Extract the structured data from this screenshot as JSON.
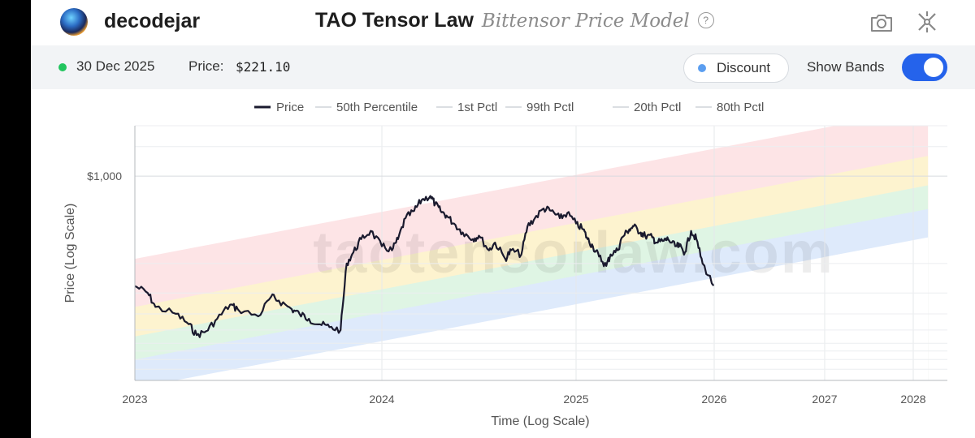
{
  "header": {
    "username": "decodejar",
    "title": "TAO Tensor Law",
    "subtitle": "Bittensor Price Model",
    "help_icon": "help-icon",
    "camera_icon": "camera-icon",
    "tools_icon": "tools-icon"
  },
  "toolbar": {
    "date": "30 Dec 2025",
    "price_label": "Price:",
    "price_value": "$221.10",
    "discount_label": "Discount",
    "bands_label": "Show Bands",
    "bands_on": true,
    "colors": {
      "status_dot": "#22c55e",
      "discount_dot": "#5b9ef0",
      "toggle": "#2563eb"
    }
  },
  "chart_data": {
    "type": "line",
    "xlabel": "Time (Log Scale)",
    "ylabel": "Price (Log Scale)",
    "watermark": "taotensorlaw.com",
    "x_ticks": [
      "2023",
      "2024",
      "2025",
      "2026",
      "2027",
      "2028"
    ],
    "y_ticks": [
      "$1,000"
    ],
    "xlim": [
      "2023-01",
      "2028-03"
    ],
    "ylim": [
      60,
      2000
    ],
    "y_scale": "log",
    "grid": true,
    "legend_position": "top",
    "legend": [
      "Price",
      "50th Percentile",
      "1st Pctl",
      "99th Pctl",
      "20th Pctl",
      "80th Pctl"
    ],
    "bands": [
      {
        "name": "99th Pctl",
        "start": 320,
        "end": 2550,
        "color": "#fde4e6"
      },
      {
        "name": "80th Pctl",
        "start": 165,
        "end": 1320,
        "color": "#fdf3cf"
      },
      {
        "name": "50th Percentile",
        "start": 110,
        "end": 880,
        "color": "#dff5e4"
      },
      {
        "name": "20th Pctl",
        "start": 80,
        "end": 635,
        "color": "#deeafb"
      },
      {
        "name": "1st Pctl",
        "start": 54,
        "end": 430,
        "color": "#ffffff"
      }
    ],
    "series": [
      {
        "name": "Price",
        "color": "#1a1a2e",
        "x": [
          "2023-01",
          "2023-01-20",
          "2023-02",
          "2023-03",
          "2023-03-20",
          "2023-04",
          "2023-04-15",
          "2023-05",
          "2023-05-20",
          "2023-06",
          "2023-07",
          "2023-07-20",
          "2023-08",
          "2023-08-20",
          "2023-09",
          "2023-09-15",
          "2023-10",
          "2023-10-15",
          "2023-11",
          "2023-11-10",
          "2023-11-20",
          "2023-12",
          "2023-12-15",
          "2024-01",
          "2024-01-20",
          "2024-02",
          "2024-02-15",
          "2024-03",
          "2024-03-15",
          "2024-04",
          "2024-04-10",
          "2024-04-20",
          "2024-05",
          "2024-05-15",
          "2024-06",
          "2024-06-20",
          "2024-07",
          "2024-07-20",
          "2024-08",
          "2024-08-20",
          "2024-09",
          "2024-09-20",
          "2024-10",
          "2024-10-15",
          "2024-11",
          "2024-11-15",
          "2024-12",
          "2024-12-15",
          "2025-01",
          "2025-01-20",
          "2025-02",
          "2025-02-15",
          "2025-03",
          "2025-03-20",
          "2025-04",
          "2025-04-20",
          "2025-05",
          "2025-05-20",
          "2025-06",
          "2025-06-20",
          "2025-07",
          "2025-07-20",
          "2025-08",
          "2025-08-20",
          "2025-09",
          "2025-09-20",
          "2025-10",
          "2025-10-15",
          "2025-11",
          "2025-11-15",
          "2025-12",
          "2025-12-30"
        ],
        "values": [
          220,
          200,
          165,
          150,
          130,
          112,
          118,
          140,
          170,
          160,
          145,
          190,
          180,
          160,
          150,
          140,
          130,
          125,
          120,
          300,
          350,
          420,
          470,
          380,
          360,
          420,
          560,
          620,
          720,
          760,
          680,
          620,
          580,
          520,
          460,
          420,
          440,
          360,
          400,
          320,
          360,
          340,
          500,
          560,
          640,
          620,
          560,
          600,
          520,
          480,
          420,
          380,
          330,
          290,
          340,
          360,
          430,
          480,
          500,
          460,
          440,
          430,
          400,
          410,
          420,
          380,
          380,
          350,
          470,
          420,
          300,
          221.1
        ]
      }
    ]
  }
}
